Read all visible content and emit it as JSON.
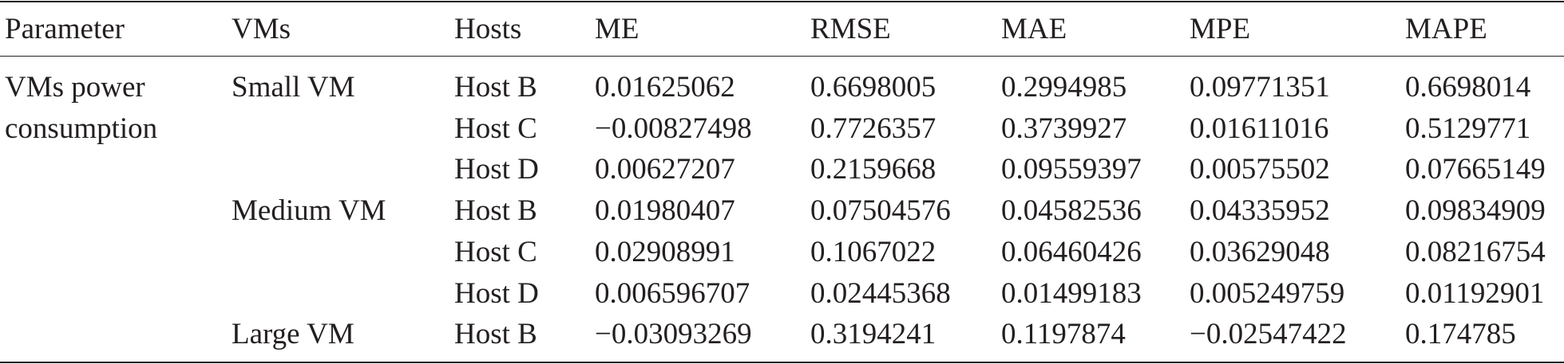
{
  "table": {
    "header": [
      "Parameter",
      "VMs",
      "Hosts",
      "ME",
      "RMSE",
      "MAE",
      "MPE",
      "MAPE"
    ],
    "parameter": "VMs power consumption",
    "groups": [
      {
        "vm": "Small VM",
        "hosts": [
          {
            "host": "Host B",
            "values": [
              "0.01625062",
              "0.6698005",
              "0.2994985",
              "0.09771351",
              "0.6698014"
            ]
          },
          {
            "host": "Host C",
            "values": [
              "−0.00827498",
              "0.7726357",
              "0.3739927",
              "0.01611016",
              "0.5129771"
            ]
          },
          {
            "host": "Host D",
            "values": [
              "0.00627207",
              "0.2159668",
              "0.09559397",
              "0.00575502",
              "0.07665149"
            ]
          }
        ]
      },
      {
        "vm": "Medium VM",
        "hosts": [
          {
            "host": "Host B",
            "values": [
              "0.01980407",
              "0.07504576",
              "0.04582536",
              "0.04335952",
              "0.09834909"
            ]
          },
          {
            "host": "Host C",
            "values": [
              "0.02908991",
              "0.1067022",
              "0.06460426",
              "0.03629048",
              "0.08216754"
            ]
          },
          {
            "host": "Host D",
            "values": [
              "0.006596707",
              "0.02445368",
              "0.01499183",
              "0.005249759",
              "0.01192901"
            ]
          }
        ]
      },
      {
        "vm": "Large VM",
        "hosts": [
          {
            "host": "Host B",
            "values": [
              "−0.03093269",
              "0.3194241",
              "0.1197874",
              "−0.02547422",
              "0.174785"
            ]
          }
        ]
      }
    ]
  }
}
